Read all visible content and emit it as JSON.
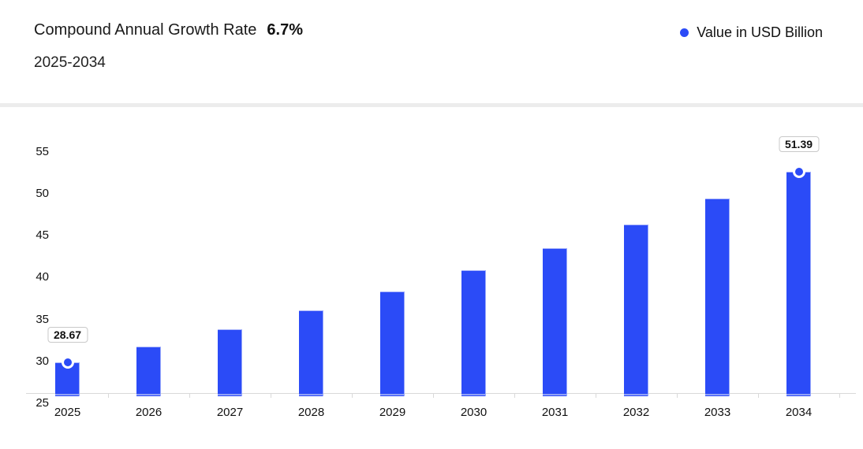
{
  "header": {
    "title": "Compound Annual Growth Rate",
    "cagr_value": "6.7%",
    "subtitle": "2025-2034",
    "legend": {
      "label": "Value in USD Billion",
      "marker_color": "#2b4bf7"
    }
  },
  "chart_data": {
    "type": "bar",
    "title": "Compound Annual Growth Rate 6.7%",
    "subtitle": "2025-2034",
    "xlabel": "",
    "ylabel": "",
    "categories": [
      "2025",
      "2026",
      "2027",
      "2028",
      "2029",
      "2030",
      "2031",
      "2032",
      "2033",
      "2034"
    ],
    "series": [
      {
        "name": "Value in USD Billion",
        "values": [
          28.67,
          30.59,
          32.64,
          34.83,
          37.16,
          39.65,
          42.31,
          45.14,
          48.17,
          51.39
        ]
      }
    ],
    "yticks": [
      55,
      50,
      45,
      40,
      35,
      30,
      25
    ],
    "ylim": [
      25,
      59
    ],
    "grid": false,
    "legend_position": "top-right",
    "bar_color": "#2b4bf7",
    "annotations": [
      {
        "category": "2025",
        "text": "28.67"
      },
      {
        "category": "2034",
        "text": "51.39"
      }
    ]
  }
}
